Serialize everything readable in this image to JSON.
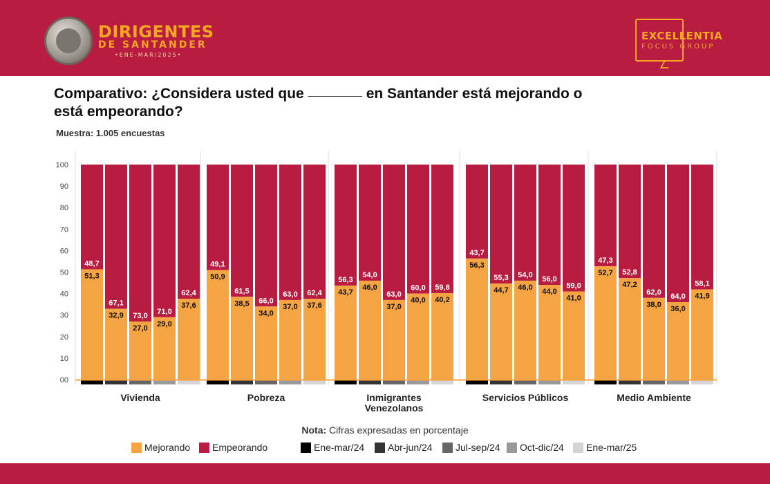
{
  "header": {
    "brand_title": "DIRIGENTES",
    "brand_subtitle": "DE SANTANDER",
    "brand_period": "•ENE-MAR/2025•",
    "partner_title": "EXCELLENTIA",
    "partner_subtitle": "FOCUS GROUP"
  },
  "question": {
    "part1": "Comparativo: ¿Considera usted que",
    "part2": "en Santander está mejorando o",
    "line2": "está empeorando?"
  },
  "sample": "Muestra: 1.005 encuestas",
  "note": {
    "bold": "Nota:",
    "text": "Cifras expresadas en porcentaje"
  },
  "colors": {
    "mejorando": "#f5a443",
    "empeorando": "#b81c40",
    "periods": [
      "#000000",
      "#333333",
      "#666666",
      "#999999",
      "#d4d4d4"
    ],
    "header_bg": "#b81c40",
    "accent": "#f5a623"
  },
  "legend": {
    "mejorando": "Mejorando",
    "empeorando": "Empeorando",
    "periods": [
      "Ene-mar/24",
      "Abr-jun/24",
      "Jul-sep/24",
      "Oct-dic/24",
      "Ene-mar/25"
    ]
  },
  "chart_data": {
    "type": "bar",
    "stacked": true,
    "ylim": [
      0,
      100
    ],
    "yticks": [
      "00",
      "10",
      "20",
      "30",
      "40",
      "50",
      "60",
      "70",
      "80",
      "90",
      "100"
    ],
    "grid": false,
    "periods": [
      "Ene-mar/24",
      "Abr-jun/24",
      "Jul-sep/24",
      "Oct-dic/24",
      "Ene-mar/25"
    ],
    "series_names": [
      "Mejorando",
      "Empeorando"
    ],
    "groups": [
      {
        "name": "Vivienda",
        "mejorando": [
          "51,3",
          "32,9",
          "27,0",
          "29,0",
          "37,6"
        ],
        "empeorando": [
          "48,7",
          "67,1",
          "73,0",
          "71,0",
          "62,4"
        ]
      },
      {
        "name": "Pobreza",
        "mejorando": [
          "50,9",
          "38,5",
          "34,0",
          "37,0",
          "37,6"
        ],
        "empeorando": [
          "49,1",
          "61,5",
          "66,0",
          "63,0",
          "62,4"
        ]
      },
      {
        "name": "Inmigrantes Venezolanos",
        "name_lines": [
          "Inmigrantes",
          "Venezolanos"
        ],
        "mejorando": [
          "43,7",
          "46,0",
          "37,0",
          "40,0",
          "40,2"
        ],
        "empeorando": [
          "56,3",
          "54,0",
          "63,0",
          "60,0",
          "59,8"
        ]
      },
      {
        "name": "Servicios Públicos",
        "mejorando": [
          "56,3",
          "44,7",
          "46,0",
          "44,0",
          "41,0"
        ],
        "empeorando": [
          "43,7",
          "55,3",
          "54,0",
          "56,0",
          "59,0"
        ]
      },
      {
        "name": "Medio Ambiente",
        "mejorando": [
          "52,7",
          "47,2",
          "38,0",
          "36,0",
          "41,9"
        ],
        "empeorando": [
          "47,3",
          "52,8",
          "62,0",
          "64,0",
          "58,1"
        ]
      }
    ]
  }
}
